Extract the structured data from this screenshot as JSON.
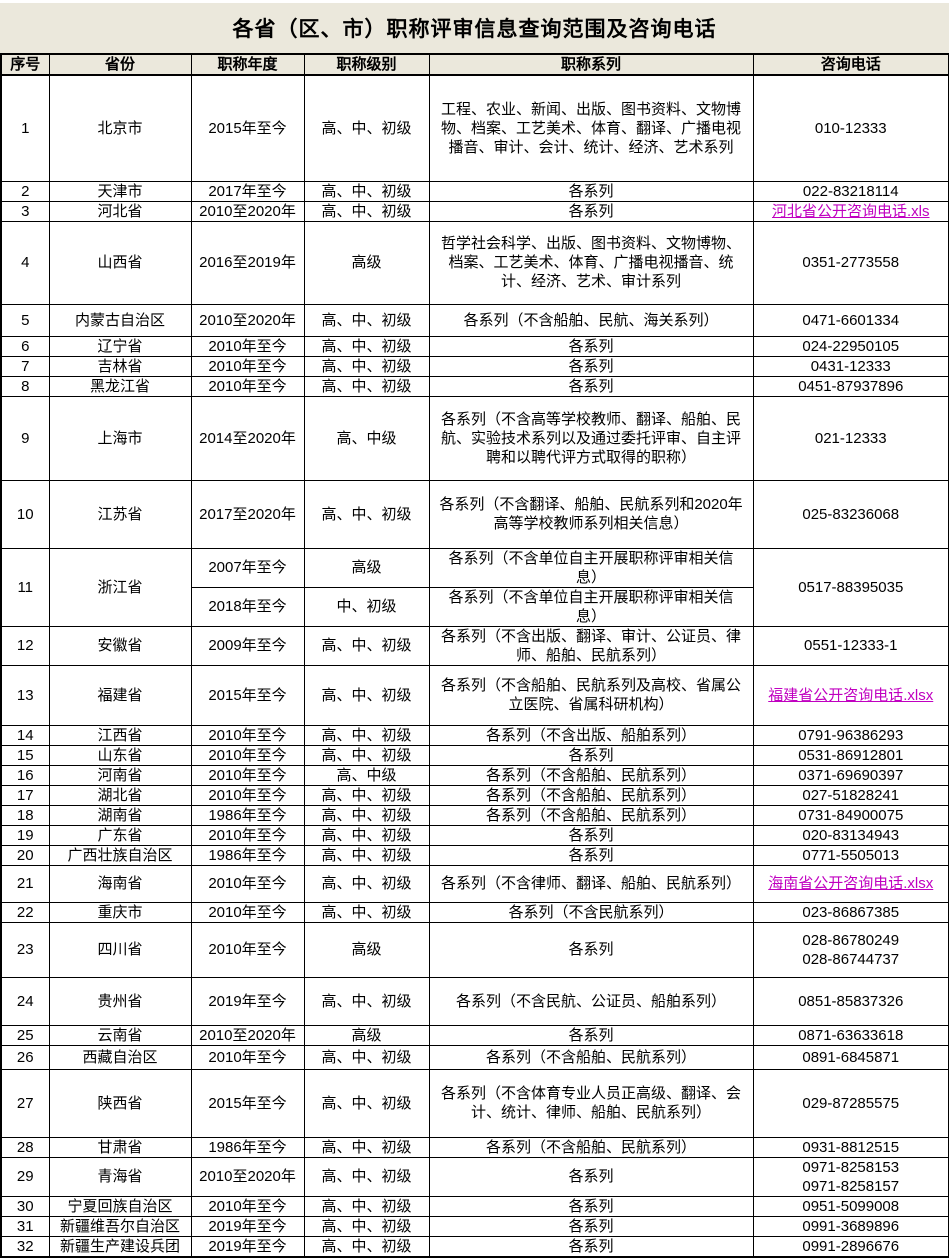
{
  "title": "各省（区、市）职称评审信息查询范围及咨询电话",
  "colors": {
    "band": "#EBE8DC",
    "link": "#C000C0",
    "grid": "#000000"
  },
  "table": {
    "headers": [
      "序号",
      "省份",
      "职称年度",
      "职称级别",
      "职称系列",
      "咨询电话"
    ],
    "rows": [
      {
        "no": "1",
        "province": "北京市",
        "entries": [
          {
            "year": "2015年至今",
            "level": "高、中、初级",
            "series": "工程、农业、新闻、出版、图书资料、文物博物、档案、工艺美术、体育、翻译、广播电视播音、审计、会计、统计、经济、艺术系列"
          }
        ],
        "phone": {
          "type": "text",
          "lines": [
            "010-12333"
          ]
        }
      },
      {
        "no": "2",
        "province": "天津市",
        "entries": [
          {
            "year": "2017年至今",
            "level": "高、中、初级",
            "series": "各系列"
          }
        ],
        "phone": {
          "type": "text",
          "lines": [
            "022-83218114"
          ]
        }
      },
      {
        "no": "3",
        "province": "河北省",
        "entries": [
          {
            "year": "2010至2020年",
            "level": "高、中、初级",
            "series": "各系列"
          }
        ],
        "phone": {
          "type": "link",
          "label": "河北省公开咨询电话.xls"
        }
      },
      {
        "no": "4",
        "province": "山西省",
        "entries": [
          {
            "year": "2016至2019年",
            "level": "高级",
            "series": "哲学社会科学、出版、图书资料、文物博物、档案、工艺美术、体育、广播电视播音、统计、经济、艺术、审计系列"
          }
        ],
        "phone": {
          "type": "text",
          "lines": [
            "0351-2773558"
          ]
        }
      },
      {
        "no": "5",
        "province": "内蒙古自治区",
        "entries": [
          {
            "year": "2010至2020年",
            "level": "高、中、初级",
            "series": "各系列（不含船舶、民航、海关系列）"
          }
        ],
        "phone": {
          "type": "text",
          "lines": [
            "0471-6601334"
          ]
        }
      },
      {
        "no": "6",
        "province": "辽宁省",
        "entries": [
          {
            "year": "2010年至今",
            "level": "高、中、初级",
            "series": "各系列"
          }
        ],
        "phone": {
          "type": "text",
          "lines": [
            "024-22950105"
          ]
        }
      },
      {
        "no": "7",
        "province": "吉林省",
        "entries": [
          {
            "year": "2010年至今",
            "level": "高、中、初级",
            "series": "各系列"
          }
        ],
        "phone": {
          "type": "text",
          "lines": [
            "0431-12333"
          ]
        }
      },
      {
        "no": "8",
        "province": "黑龙江省",
        "entries": [
          {
            "year": "2010年至今",
            "level": "高、中、初级",
            "series": "各系列"
          }
        ],
        "phone": {
          "type": "text",
          "lines": [
            "0451-87937896"
          ]
        }
      },
      {
        "no": "9",
        "province": "上海市",
        "entries": [
          {
            "year": "2014至2020年",
            "level": "高、中级",
            "series": "各系列（不含高等学校教师、翻译、船舶、民航、实验技术系列以及通过委托评审、自主评聘和以聘代评方式取得的职称）"
          }
        ],
        "phone": {
          "type": "text",
          "lines": [
            "021-12333"
          ]
        }
      },
      {
        "no": "10",
        "province": "江苏省",
        "entries": [
          {
            "year": "2017至2020年",
            "level": "高、中、初级",
            "series": "各系列（不含翻译、船舶、民航系列和2020年高等学校教师系列相关信息）"
          }
        ],
        "phone": {
          "type": "text",
          "lines": [
            "025-83236068"
          ]
        }
      },
      {
        "no": "11",
        "province": "浙江省",
        "entries": [
          {
            "year": "2007年至今",
            "level": "高级",
            "series": "各系列（不含单位自主开展职称评审相关信息）"
          },
          {
            "year": "2018年至今",
            "level": "中、初级",
            "series": "各系列（不含单位自主开展职称评审相关信息）"
          }
        ],
        "phone": {
          "type": "text",
          "lines": [
            "0517-88395035"
          ]
        }
      },
      {
        "no": "12",
        "province": "安徽省",
        "entries": [
          {
            "year": "2009年至今",
            "level": "高、中、初级",
            "series": "各系列（不含出版、翻译、审计、公证员、律师、船舶、民航系列）"
          }
        ],
        "phone": {
          "type": "text",
          "lines": [
            "0551-12333-1"
          ]
        }
      },
      {
        "no": "13",
        "province": "福建省",
        "entries": [
          {
            "year": "2015年至今",
            "level": "高、中、初级",
            "series": "各系列（不含船舶、民航系列及高校、省属公立医院、省属科研机构）"
          }
        ],
        "phone": {
          "type": "link",
          "label": "福建省公开咨询电话.xlsx"
        }
      },
      {
        "no": "14",
        "province": "江西省",
        "entries": [
          {
            "year": "2010年至今",
            "level": "高、中、初级",
            "series": "各系列（不含出版、船舶系列）"
          }
        ],
        "phone": {
          "type": "text",
          "lines": [
            "0791-96386293"
          ]
        }
      },
      {
        "no": "15",
        "province": "山东省",
        "entries": [
          {
            "year": "2010年至今",
            "level": "高、中、初级",
            "series": "各系列"
          }
        ],
        "phone": {
          "type": "text",
          "lines": [
            "0531-86912801"
          ]
        }
      },
      {
        "no": "16",
        "province": "河南省",
        "entries": [
          {
            "year": "2010年至今",
            "level": "高、中级",
            "series": "各系列（不含船舶、民航系列）"
          }
        ],
        "phone": {
          "type": "text",
          "lines": [
            "0371-69690397"
          ]
        }
      },
      {
        "no": "17",
        "province": "湖北省",
        "entries": [
          {
            "year": "2010年至今",
            "level": "高、中、初级",
            "series": "各系列（不含船舶、民航系列）"
          }
        ],
        "phone": {
          "type": "text",
          "lines": [
            "027-51828241"
          ]
        }
      },
      {
        "no": "18",
        "province": "湖南省",
        "entries": [
          {
            "year": "1986年至今",
            "level": "高、中、初级",
            "series": "各系列（不含船舶、民航系列）"
          }
        ],
        "phone": {
          "type": "text",
          "lines": [
            "0731-84900075"
          ]
        }
      },
      {
        "no": "19",
        "province": "广东省",
        "entries": [
          {
            "year": "2010年至今",
            "level": "高、中、初级",
            "series": "各系列"
          }
        ],
        "phone": {
          "type": "text",
          "lines": [
            "020-83134943"
          ]
        }
      },
      {
        "no": "20",
        "province": "广西壮族自治区",
        "entries": [
          {
            "year": "1986年至今",
            "level": "高、中、初级",
            "series": "各系列"
          }
        ],
        "phone": {
          "type": "text",
          "lines": [
            "0771-5505013"
          ]
        }
      },
      {
        "no": "21",
        "province": "海南省",
        "entries": [
          {
            "year": "2010年至今",
            "level": "高、中、初级",
            "series": "各系列（不含律师、翻译、船舶、民航系列）"
          }
        ],
        "phone": {
          "type": "link",
          "label": "海南省公开咨询电话.xlsx"
        }
      },
      {
        "no": "22",
        "province": "重庆市",
        "entries": [
          {
            "year": "2010年至今",
            "level": "高、中、初级",
            "series": "各系列（不含民航系列）"
          }
        ],
        "phone": {
          "type": "text",
          "lines": [
            "023-86867385"
          ]
        }
      },
      {
        "no": "23",
        "province": "四川省",
        "entries": [
          {
            "year": "2010年至今",
            "level": "高级",
            "series": "各系列"
          }
        ],
        "phone": {
          "type": "text",
          "lines": [
            "028-86780249",
            "028-86744737"
          ]
        }
      },
      {
        "no": "24",
        "province": "贵州省",
        "entries": [
          {
            "year": "2019年至今",
            "level": "高、中、初级",
            "series": "各系列（不含民航、公证员、船舶系列）"
          }
        ],
        "phone": {
          "type": "text",
          "lines": [
            "0851-85837326"
          ]
        }
      },
      {
        "no": "25",
        "province": "云南省",
        "entries": [
          {
            "year": "2010至2020年",
            "level": "高级",
            "series": "各系列"
          }
        ],
        "phone": {
          "type": "text",
          "lines": [
            "0871-63633618"
          ]
        }
      },
      {
        "no": "26",
        "province": "西藏自治区",
        "entries": [
          {
            "year": "2010年至今",
            "level": "高、中、初级",
            "series": "各系列（不含船舶、民航系列）"
          }
        ],
        "phone": {
          "type": "text",
          "lines": [
            "0891-6845871"
          ]
        }
      },
      {
        "no": "27",
        "province": "陕西省",
        "entries": [
          {
            "year": "2015年至今",
            "level": "高、中、初级",
            "series": "各系列（不含体育专业人员正高级、翻译、会计、统计、律师、船舶、民航系列）"
          }
        ],
        "phone": {
          "type": "text",
          "lines": [
            "029-87285575"
          ]
        }
      },
      {
        "no": "28",
        "province": "甘肃省",
        "entries": [
          {
            "year": "1986年至今",
            "level": "高、中、初级",
            "series": "各系列（不含船舶、民航系列）"
          }
        ],
        "phone": {
          "type": "text",
          "lines": [
            "0931-8812515"
          ]
        }
      },
      {
        "no": "29",
        "province": "青海省",
        "entries": [
          {
            "year": "2010至2020年",
            "level": "高、中、初级",
            "series": "各系列"
          }
        ],
        "phone": {
          "type": "text",
          "lines": [
            "0971-8258153",
            "0971-8258157"
          ]
        }
      },
      {
        "no": "30",
        "province": "宁夏回族自治区",
        "entries": [
          {
            "year": "2010年至今",
            "level": "高、中、初级",
            "series": "各系列"
          }
        ],
        "phone": {
          "type": "text",
          "lines": [
            "0951-5099008"
          ]
        }
      },
      {
        "no": "31",
        "province": "新疆维吾尔自治区",
        "entries": [
          {
            "year": "2019年至今",
            "level": "高、中、初级",
            "series": "各系列"
          }
        ],
        "phone": {
          "type": "text",
          "lines": [
            "0991-3689896"
          ]
        }
      },
      {
        "no": "32",
        "province": "新疆生产建设兵团",
        "entries": [
          {
            "year": "2019年至今",
            "level": "高、中、初级",
            "series": "各系列"
          }
        ],
        "phone": {
          "type": "text",
          "lines": [
            "0991-2896676"
          ]
        }
      }
    ]
  }
}
